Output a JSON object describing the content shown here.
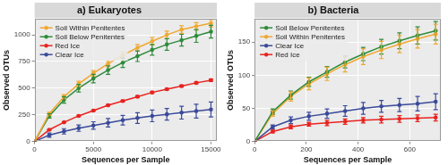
{
  "chart_data": [
    {
      "type": "line",
      "title": "a) Eukaryotes",
      "x_label": "Sequences per Sample",
      "y_label": "Observed OTUs",
      "x": [
        0,
        1250,
        2500,
        3750,
        5000,
        6250,
        7500,
        8750,
        10000,
        11250,
        12500,
        13750,
        15000
      ],
      "series": [
        {
          "name": "Soil Within Penitentes",
          "color": "#f0a830",
          "values": [
            0,
            260,
            420,
            540,
            640,
            730,
            810,
            880,
            940,
            1000,
            1050,
            1080,
            1110
          ],
          "errors": [
            0,
            15,
            20,
            25,
            25,
            30,
            30,
            30,
            35,
            35,
            35,
            35,
            35
          ]
        },
        {
          "name": "Soil Below Penitentes",
          "color": "#2e8b3a",
          "values": [
            0,
            240,
            390,
            500,
            590,
            670,
            740,
            800,
            860,
            910,
            950,
            990,
            1030
          ],
          "errors": [
            0,
            20,
            30,
            35,
            40,
            40,
            45,
            50,
            50,
            55,
            55,
            60,
            60
          ]
        },
        {
          "name": "Red Ice",
          "color": "#e8231f",
          "values": [
            0,
            110,
            180,
            240,
            290,
            340,
            380,
            420,
            460,
            490,
            520,
            550,
            575
          ],
          "errors": [
            0,
            5,
            5,
            6,
            6,
            7,
            7,
            8,
            8,
            8,
            9,
            9,
            10
          ]
        },
        {
          "name": "Clear Ice",
          "color": "#3a4a9a",
          "values": [
            0,
            60,
            95,
            125,
            150,
            175,
            200,
            220,
            240,
            255,
            270,
            285,
            300
          ],
          "errors": [
            0,
            20,
            25,
            30,
            35,
            40,
            45,
            50,
            55,
            55,
            60,
            65,
            70
          ]
        }
      ],
      "xlim": [
        0,
        15500
      ],
      "ylim": [
        0,
        1150
      ],
      "xticks": [
        0,
        5000,
        10000,
        15000
      ],
      "yticks": [
        0,
        250,
        500,
        750,
        1000
      ],
      "grid": true,
      "legend": "upper left",
      "marker": "circle"
    },
    {
      "type": "line",
      "title": "b) Bacteria",
      "x_label": "Sequences per Sample",
      "y_label": "Observed OTUs",
      "x": [
        0,
        70,
        140,
        210,
        280,
        350,
        420,
        490,
        560,
        630,
        700
      ],
      "series": [
        {
          "name": "Soil Below Penitentes",
          "color": "#2e8b3a",
          "values": [
            0,
            45,
            70,
            90,
            105,
            120,
            132,
            143,
            152,
            160,
            167
          ],
          "errors": [
            0,
            4,
            6,
            7,
            8,
            9,
            10,
            11,
            12,
            13,
            14
          ]
        },
        {
          "name": "Soil Within Penitentes",
          "color": "#f0a830",
          "values": [
            0,
            42,
            68,
            87,
            102,
            116,
            128,
            138,
            147,
            155,
            162
          ],
          "errors": [
            0,
            4,
            7,
            9,
            10,
            11,
            12,
            13,
            13,
            14,
            15
          ]
        },
        {
          "name": "Clear Ice",
          "color": "#3a4a9a",
          "values": [
            0,
            22,
            32,
            38,
            42,
            46,
            50,
            53,
            55,
            57,
            60
          ],
          "errors": [
            0,
            3,
            5,
            6,
            7,
            8,
            9,
            9,
            10,
            11,
            12
          ]
        },
        {
          "name": "Red Ice",
          "color": "#e8231f",
          "values": [
            0,
            15,
            22,
            26,
            28,
            30,
            32,
            33,
            34,
            35,
            36
          ],
          "errors": [
            0,
            2,
            3,
            3,
            4,
            4,
            4,
            5,
            5,
            5,
            5
          ]
        }
      ],
      "xlim": [
        0,
        720
      ],
      "ylim": [
        0,
        185
      ],
      "xticks": [
        0,
        200,
        400,
        600
      ],
      "yticks": [
        0,
        50,
        100,
        150
      ],
      "grid": true,
      "legend": "upper left",
      "marker": "circle"
    }
  ]
}
